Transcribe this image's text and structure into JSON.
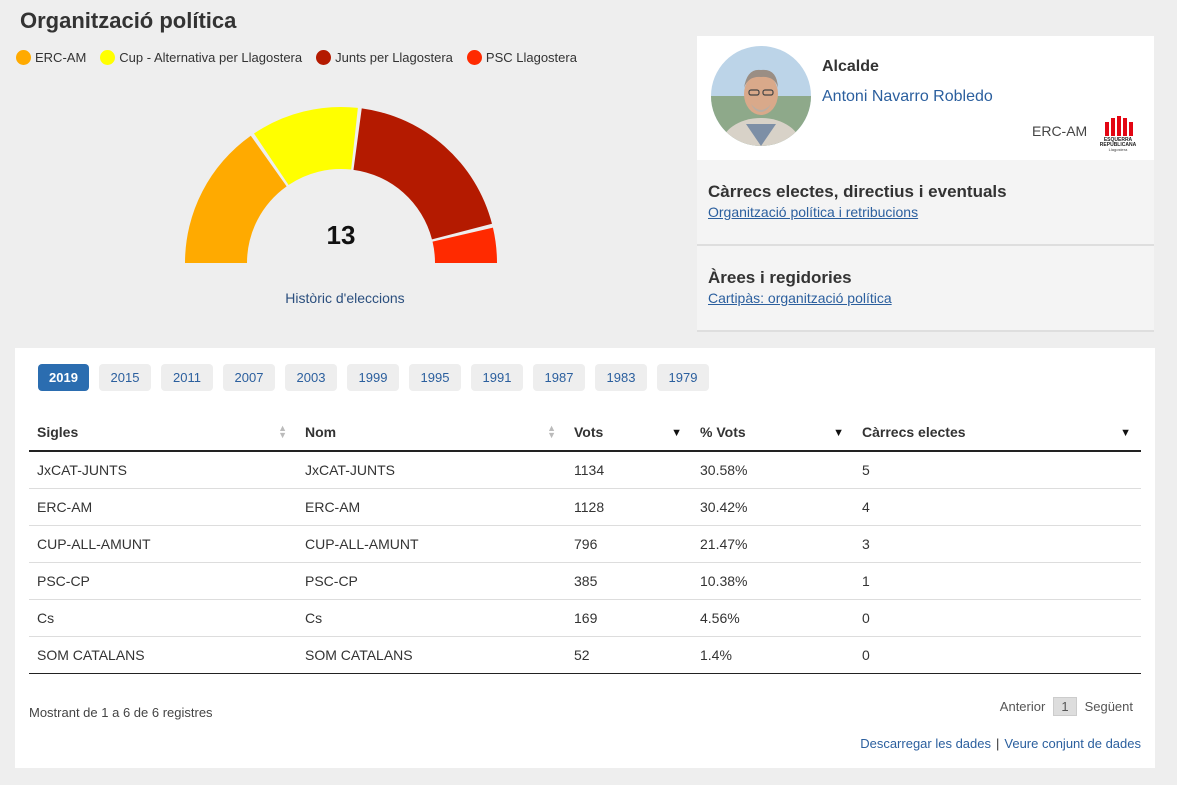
{
  "page": {
    "title": "Organització política"
  },
  "legend": [
    {
      "label": "ERC-AM",
      "color": "#ffaa00"
    },
    {
      "label": "Cup - Alternativa per Llagostera",
      "color": "#ffff00"
    },
    {
      "label": "Junts per Llagostera",
      "color": "#b41a00"
    },
    {
      "label": "PSC Llagostera",
      "color": "#ff2a00"
    }
  ],
  "gauge": {
    "total": "13",
    "history_link": "Històric d'eleccions",
    "segments": [
      {
        "party": "ERC-AM",
        "seats": 4,
        "color": "#ffaa00"
      },
      {
        "party": "Cup - Alternativa per Llagostera",
        "seats": 3,
        "color": "#ffff00"
      },
      {
        "party": "Junts per Llagostera",
        "seats": 5,
        "color": "#b41a00"
      },
      {
        "party": "PSC Llagostera",
        "seats": 1,
        "color": "#ff2a00"
      }
    ]
  },
  "mayor": {
    "role": "Alcalde",
    "name": "Antoni Navarro Robledo",
    "party": "ERC-AM",
    "logo_text_1": "ESQUERRA",
    "logo_text_2": "REPUBLICANA",
    "logo_text_3": "Llagostera"
  },
  "info_blocks": [
    {
      "title": "Càrrecs electes, directius i eventuals",
      "link": "Organització política i retribucions"
    },
    {
      "title": "Àrees i regidories",
      "link": "Cartipàs: organització política"
    }
  ],
  "years": [
    "2019",
    "2015",
    "2011",
    "2007",
    "2003",
    "1999",
    "1995",
    "1991",
    "1987",
    "1983",
    "1979"
  ],
  "table": {
    "headers": [
      "Sigles",
      "Nom",
      "Vots",
      "% Vots",
      "Càrrecs electes"
    ],
    "rows": [
      [
        "JxCAT-JUNTS",
        "JxCAT-JUNTS",
        "1134",
        "30.58%",
        "5"
      ],
      [
        "ERC-AM",
        "ERC-AM",
        "1128",
        "30.42%",
        "4"
      ],
      [
        "CUP-ALL-AMUNT",
        "CUP-ALL-AMUNT",
        "796",
        "21.47%",
        "3"
      ],
      [
        "PSC-CP",
        "PSC-CP",
        "385",
        "10.38%",
        "1"
      ],
      [
        "Cs",
        "Cs",
        "169",
        "4.56%",
        "0"
      ],
      [
        "SOM CATALANS",
        "SOM CATALANS",
        "52",
        "1.4%",
        "0"
      ]
    ]
  },
  "footer": {
    "records": "Mostrant de 1 a 6 de 6 registres",
    "prev": "Anterior",
    "page": "1",
    "next": "Següent",
    "download": "Descarregar les dades",
    "separator": "|",
    "dataset": "Veure conjunt de dades"
  }
}
